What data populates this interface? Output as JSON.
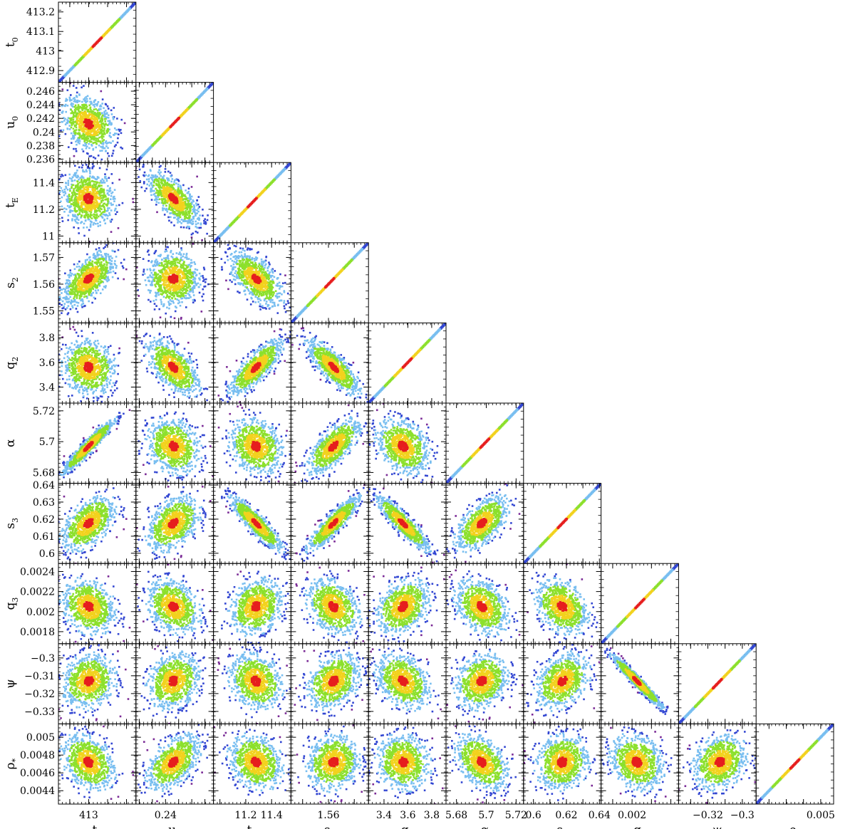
{
  "chart_data": {
    "type": "scatter",
    "description_type": "corner",
    "colors": {
      "level1": "#e61e1e",
      "level2": "#f2d21e",
      "level3": "#8ce02c",
      "level4": "#78bef0",
      "level5": "#3246d2",
      "level6": "#7a2a96"
    },
    "params": [
      {
        "name": "t0",
        "label": "t",
        "sub": "0",
        "range": [
          412.84,
          413.25
        ],
        "ticks": [
          412.9,
          413,
          413.1,
          413.2
        ],
        "tick_labels": [
          "412.9",
          "413",
          "413.1",
          "413.2"
        ],
        "xticks": [
          413
        ],
        "xtick_labels": [
          "413"
        ],
        "center": 413.0
      },
      {
        "name": "u0",
        "label": "u",
        "sub": "0",
        "range": [
          0.2355,
          0.2473
        ],
        "ticks": [
          0.236,
          0.238,
          0.24,
          0.242,
          0.244,
          0.246
        ],
        "tick_labels": [
          "0.236",
          "0.238",
          "0.24",
          "0.242",
          "0.244",
          "0.246"
        ],
        "xticks": [
          0.24
        ],
        "xtick_labels": [
          "0.24"
        ],
        "center": 0.2412
      },
      {
        "name": "tE",
        "label": "t",
        "sub": "E",
        "range": [
          10.95,
          11.55
        ],
        "ticks": [
          11,
          11.2,
          11.4
        ],
        "tick_labels": [
          "11",
          "11.2",
          "11.4"
        ],
        "xticks": [
          11.2,
          11.4
        ],
        "xtick_labels": [
          "11.2",
          "11.4"
        ],
        "center": 11.28
      },
      {
        "name": "s2",
        "label": "s",
        "sub": "2",
        "range": [
          1.5455,
          1.5755
        ],
        "ticks": [
          1.55,
          1.56,
          1.57
        ],
        "tick_labels": [
          "1.55",
          "1.56",
          "1.57"
        ],
        "xticks": [
          1.56
        ],
        "xtick_labels": [
          "1.56"
        ],
        "center": 1.562
      },
      {
        "name": "q2",
        "label": "q",
        "sub": "2",
        "range": [
          3.27,
          3.92
        ],
        "ticks": [
          3.4,
          3.6,
          3.8
        ],
        "tick_labels": [
          "3.4",
          "3.6",
          "3.8"
        ],
        "xticks": [
          3.4,
          3.6,
          3.8
        ],
        "xtick_labels": [
          "3.4",
          "3.6",
          "3.8"
        ],
        "center": 3.56
      },
      {
        "name": "alpha",
        "label": "α",
        "sub": "",
        "range": [
          5.673,
          5.725
        ],
        "ticks": [
          5.68,
          5.7,
          5.72
        ],
        "tick_labels": [
          "5.68",
          "5.7",
          "5.72"
        ],
        "xticks": [
          5.68,
          5.7,
          5.72
        ],
        "xtick_labels": [
          "5.68",
          "5.7",
          "5.72"
        ],
        "center": 5.697
      },
      {
        "name": "s3",
        "label": "s",
        "sub": "3",
        "range": [
          0.594,
          0.641
        ],
        "ticks": [
          0.6,
          0.61,
          0.62,
          0.63,
          0.64
        ],
        "tick_labels": [
          "0.6",
          "0.61",
          "0.62",
          "0.63",
          "0.64"
        ],
        "xticks": [
          0.6,
          0.62,
          0.64
        ],
        "xtick_labels": [
          "0.6",
          "0.62",
          "0.64"
        ],
        "center": 0.6175
      },
      {
        "name": "q3",
        "label": "q",
        "sub": "3",
        "range": [
          0.00168,
          0.00248
        ],
        "ticks": [
          0.0018,
          0.002,
          0.0022,
          0.0024
        ],
        "tick_labels": [
          "0.0018",
          "0.002",
          "0.0022",
          "0.0024"
        ],
        "xticks": [
          0.002
        ],
        "xtick_labels": [
          "0.002"
        ],
        "center": 0.00205
      },
      {
        "name": "psi",
        "label": "ψ",
        "sub": "",
        "range": [
          -0.337,
          -0.292
        ],
        "ticks": [
          -0.33,
          -0.32,
          -0.31,
          -0.3
        ],
        "tick_labels": [
          "−0.33",
          "−0.32",
          "−0.31",
          "−0.3"
        ],
        "xticks": [
          -0.32,
          -0.3
        ],
        "xtick_labels": [
          "−0.32",
          "−0.3"
        ],
        "center": -0.313
      },
      {
        "name": "rho",
        "label": "ρ",
        "sub": "*",
        "range": [
          0.00425,
          0.00515
        ],
        "ticks": [
          0.0044,
          0.0046,
          0.0048,
          0.005
        ],
        "tick_labels": [
          "0.0044",
          "0.0046",
          "0.0048",
          "0.005"
        ],
        "xticks": [
          0.005
        ],
        "xtick_labels": [
          "0.005"
        ],
        "center": 0.00472
      }
    ],
    "correlations": [
      [
        "t0",
        "u0",
        -0.3
      ],
      [
        "t0",
        "tE",
        -0.1
      ],
      [
        "t0",
        "s2",
        0.6
      ],
      [
        "t0",
        "q2",
        -0.1
      ],
      [
        "t0",
        "alpha",
        0.95
      ],
      [
        "t0",
        "s3",
        0.5
      ],
      [
        "t0",
        "q3",
        -0.2
      ],
      [
        "t0",
        "psi",
        0.1
      ],
      [
        "t0",
        "rho",
        -0.3
      ],
      [
        "u0",
        "tE",
        -0.7
      ],
      [
        "u0",
        "s2",
        0.0
      ],
      [
        "u0",
        "q2",
        -0.6
      ],
      [
        "u0",
        "alpha",
        -0.2
      ],
      [
        "u0",
        "s3",
        0.4
      ],
      [
        "u0",
        "q3",
        -0.3
      ],
      [
        "u0",
        "psi",
        0.2
      ],
      [
        "u0",
        "rho",
        0.5
      ],
      [
        "tE",
        "s2",
        -0.6
      ],
      [
        "tE",
        "q2",
        0.8
      ],
      [
        "tE",
        "alpha",
        -0.2
      ],
      [
        "tE",
        "s3",
        -0.9
      ],
      [
        "tE",
        "q3",
        0.2
      ],
      [
        "tE",
        "psi",
        -0.2
      ],
      [
        "tE",
        "rho",
        -0.2
      ],
      [
        "s2",
        "q2",
        -0.8
      ],
      [
        "s2",
        "alpha",
        0.7
      ],
      [
        "s2",
        "s3",
        0.9
      ],
      [
        "s2",
        "q3",
        -0.3
      ],
      [
        "s2",
        "psi",
        0.3
      ],
      [
        "s2",
        "rho",
        0.1
      ],
      [
        "q2",
        "alpha",
        -0.3
      ],
      [
        "q2",
        "s3",
        -0.9
      ],
      [
        "q2",
        "q3",
        0.3
      ],
      [
        "q2",
        "psi",
        -0.3
      ],
      [
        "q2",
        "rho",
        -0.1
      ],
      [
        "alpha",
        "s3",
        0.6
      ],
      [
        "alpha",
        "q3",
        -0.3
      ],
      [
        "alpha",
        "psi",
        0.2
      ],
      [
        "alpha",
        "rho",
        -0.4
      ],
      [
        "s3",
        "q3",
        -0.3
      ],
      [
        "s3",
        "psi",
        0.3
      ],
      [
        "s3",
        "rho",
        0.1
      ],
      [
        "q3",
        "psi",
        -0.97
      ],
      [
        "q3",
        "rho",
        -0.2
      ],
      [
        "psi",
        "rho",
        0.2
      ]
    ]
  }
}
